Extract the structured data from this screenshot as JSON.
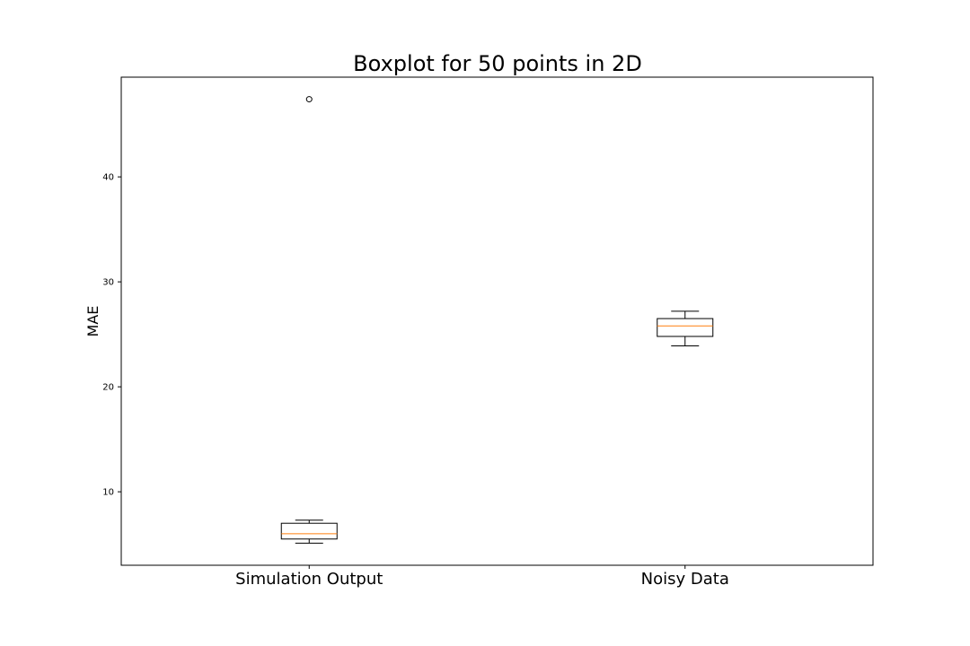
{
  "chart_data": {
    "type": "boxplot",
    "title": "Boxplot for 50 points in 2D",
    "xlabel": "",
    "ylabel": "MAE",
    "ylim": [
      3.0,
      49.5
    ],
    "yticks": [
      10,
      20,
      30,
      40
    ],
    "grid": false,
    "categories": [
      "Simulation Output",
      "Noisy Data"
    ],
    "boxes": [
      {
        "category": "Simulation Output",
        "whisker_low": 5.1,
        "q1": 5.5,
        "median": 6.0,
        "q3": 7.0,
        "whisker_high": 7.3,
        "outliers": [
          47.4
        ]
      },
      {
        "category": "Noisy Data",
        "whisker_low": 23.9,
        "q1": 24.8,
        "median": 25.8,
        "q3": 26.5,
        "whisker_high": 27.2,
        "outliers": []
      }
    ],
    "colors": {
      "box": "#000000",
      "median": "#ff7f0e",
      "outlier": "#000000"
    }
  }
}
